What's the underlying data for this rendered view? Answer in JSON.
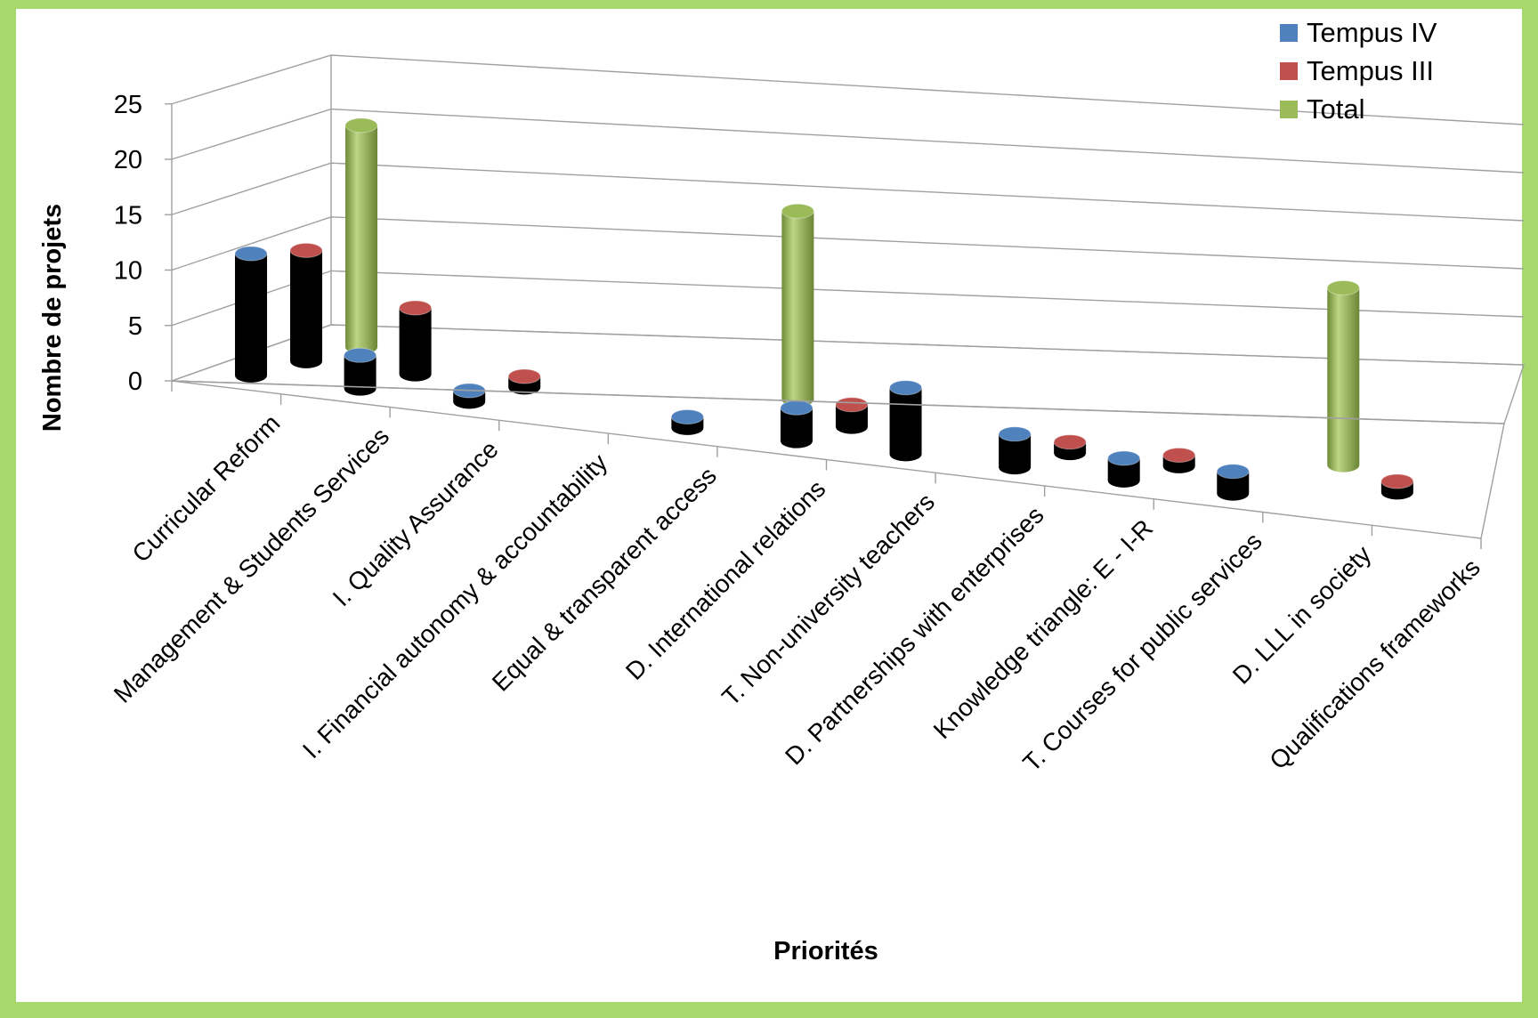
{
  "colors": {
    "frame": "#a6d86e",
    "title_fragment": "#f4e500",
    "Tempus IV": "#4f81bd",
    "Tempus III": "#c0504d",
    "Total": "#9bbb59",
    "grid": "#a0a0a0"
  },
  "chart_data": {
    "type": "bar",
    "style": "3d-cylinder",
    "title": "",
    "xlabel": "Priorités",
    "ylabel": "Nombre de projets",
    "ylim": [
      0,
      25
    ],
    "yticks": [
      "0",
      "5",
      "10",
      "15",
      "20",
      "25"
    ],
    "grid": true,
    "legend_position": "top-right",
    "legend": [
      "Tempus IV",
      "Tempus III",
      "Total"
    ],
    "categories": [
      "Curricular Reform",
      "Management & Students Services",
      "I. Quality Assurance",
      "I. Financial autonomy & accountability",
      "Equal & transparent access",
      "D. International relations",
      "T. Non-university teachers",
      "D. Partnerships with enterprises",
      "Knowledge triangle: E - I-R",
      "T. Courses for public services",
      "D. LLL in society",
      "Qualifications  frameworks"
    ],
    "series": [
      {
        "name": "Tempus IV",
        "values": [
          11,
          3,
          1,
          0,
          1,
          3,
          6,
          3,
          2,
          2,
          0,
          0
        ]
      },
      {
        "name": "Tempus III",
        "values": [
          10,
          6,
          1,
          0,
          0,
          2,
          0,
          1,
          1,
          0,
          1,
          0
        ]
      },
      {
        "name": "Total",
        "values": [
          20,
          0,
          0,
          0,
          17,
          0,
          0,
          0,
          0,
          16,
          0,
          0
        ]
      }
    ]
  }
}
